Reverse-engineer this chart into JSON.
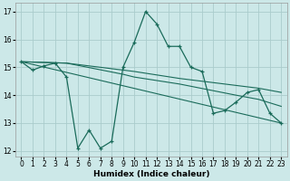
{
  "xlabel": "Humidex (Indice chaleur)",
  "xlim": [
    -0.5,
    23.5
  ],
  "ylim": [
    11.8,
    17.3
  ],
  "xticks": [
    0,
    1,
    2,
    3,
    4,
    5,
    6,
    7,
    8,
    9,
    10,
    11,
    12,
    13,
    14,
    15,
    16,
    17,
    18,
    19,
    20,
    21,
    22,
    23
  ],
  "yticks": [
    12,
    13,
    14,
    15,
    16,
    17
  ],
  "background_color": "#cce8e8",
  "grid_color": "#aacccc",
  "line_color": "#1a6b5a",
  "main_line": {
    "x": [
      0,
      1,
      2,
      3,
      4,
      5,
      6,
      7,
      8,
      9,
      10,
      11,
      12,
      13,
      14,
      15,
      16,
      17,
      18,
      19,
      20,
      21,
      22,
      23
    ],
    "y": [
      15.2,
      14.9,
      15.05,
      15.15,
      14.65,
      12.1,
      12.75,
      12.1,
      12.35,
      15.0,
      15.9,
      17.0,
      16.55,
      15.75,
      15.75,
      15.0,
      14.85,
      13.35,
      13.45,
      13.75,
      14.1,
      14.2,
      13.35,
      13.0
    ]
  },
  "trend_line1": {
    "x": [
      0,
      4,
      9,
      10,
      14,
      19,
      21,
      23
    ],
    "y": [
      15.2,
      15.15,
      14.9,
      14.85,
      14.6,
      14.35,
      14.25,
      14.1
    ]
  },
  "trend_line2": {
    "x": [
      0,
      4,
      9,
      10,
      14,
      19,
      21,
      23
    ],
    "y": [
      15.2,
      15.15,
      14.75,
      14.65,
      14.4,
      14.0,
      13.85,
      13.6
    ]
  },
  "straight_line": {
    "x": [
      0,
      23
    ],
    "y": [
      15.2,
      13.0
    ]
  }
}
